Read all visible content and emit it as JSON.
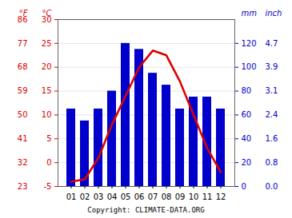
{
  "chart_data": {
    "type": "combo",
    "categories": [
      "01",
      "02",
      "03",
      "04",
      "05",
      "06",
      "07",
      "08",
      "09",
      "10",
      "11",
      "12"
    ],
    "series": [
      {
        "type": "bar",
        "axis": "y2",
        "color": "#0000cc",
        "values": [
          65,
          55,
          65,
          80,
          120,
          115,
          95,
          85,
          65,
          75,
          75,
          65
        ]
      },
      {
        "type": "line",
        "color": "#dd0000",
        "values": [
          -4.0,
          -3.5,
          1.0,
          8.0,
          14.0,
          20.0,
          23.5,
          22.5,
          17.0,
          10.0,
          3.0,
          -2.0
        ]
      }
    ],
    "ylabel": "°C",
    "ylim": [
      -5,
      30
    ],
    "yticks": [
      -5,
      0,
      5,
      10,
      15,
      20,
      25,
      30
    ],
    "y3label": "°F",
    "y3ticks": [
      {
        "value": -5,
        "label": "23"
      },
      {
        "value": 0,
        "label": "32"
      },
      {
        "value": 5,
        "label": "41"
      },
      {
        "value": 10,
        "label": "50"
      },
      {
        "value": 15,
        "label": "59"
      },
      {
        "value": 20,
        "label": "68"
      },
      {
        "value": 25,
        "label": "77"
      },
      {
        "value": 30,
        "label": "86"
      }
    ],
    "y2label": "mm",
    "y2lim": [
      0,
      140
    ],
    "y2ticks": [
      0,
      20,
      40,
      60,
      80,
      100,
      120
    ],
    "y4label": "inch",
    "y4ticks": [
      {
        "value": 0,
        "label": "0.0"
      },
      {
        "value": 20,
        "label": "0.8"
      },
      {
        "value": 40,
        "label": "1.6"
      },
      {
        "value": 60,
        "label": "2.4"
      },
      {
        "value": 80,
        "label": "3.1"
      },
      {
        "value": 100,
        "label": "3.9"
      },
      {
        "value": 120,
        "label": "4.7"
      }
    ],
    "grid": true,
    "caption": "Copyright: CLIMATE-DATA.ORG"
  }
}
